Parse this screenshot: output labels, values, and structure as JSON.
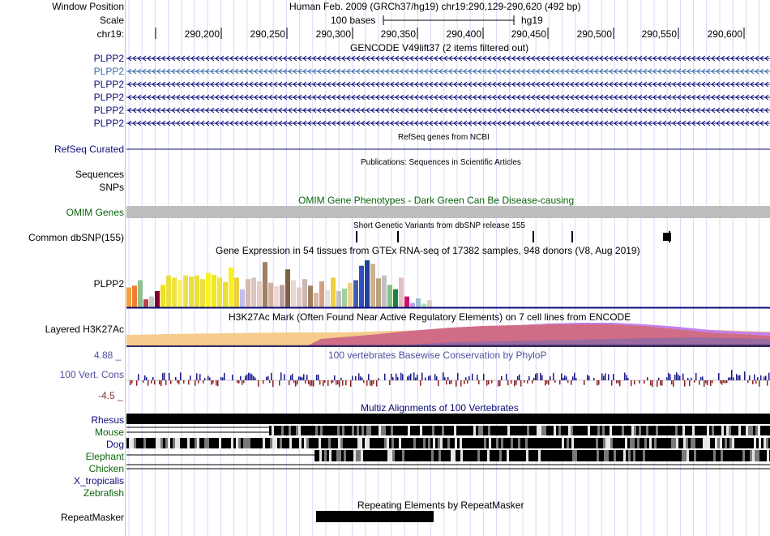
{
  "header": {
    "window_position_label": "Window Position",
    "assembly_text": "Human Feb. 2009 (GRCh37/hg19)   chr19:290,129-290,620 (492 bp)",
    "scale_label": "Scale",
    "scale_bar_text": "100 bases",
    "scale_db": "hg19",
    "chrom_label": "chr19:",
    "ticks": [
      "290,200",
      "290,250",
      "290,300",
      "290,350",
      "290,400",
      "290,450",
      "290,500",
      "290,550",
      "290,600"
    ]
  },
  "tracks": {
    "gencode": {
      "title": "GENCODE V49lift37 (2 items filtered out)",
      "items": [
        "PLPP2",
        "PLPP2",
        "PLPP2",
        "PLPP2",
        "PLPP2",
        "PLPP2"
      ],
      "highlight_color": "#3a6aa8",
      "color": "#0c0c78"
    },
    "refseq": {
      "title": "RefSeq genes from NCBI",
      "label": "RefSeq Curated"
    },
    "publications": {
      "title": "Publications: Sequences in Scientific Articles",
      "label": "Sequences"
    },
    "snps": {
      "label": "SNPs"
    },
    "omim": {
      "title": "OMIM Gene Phenotypes - Dark Green Can Be Disease-causing",
      "label": "OMIM Genes",
      "color": "#0a640a"
    },
    "dbsnp": {
      "title": "Short Genetic Variants from dbSNP release 155",
      "label": "Common dbSNP(155)"
    },
    "gtex": {
      "title": "Gene Expression in 54 tissues from GTEx RNA-seq of 17382 samples, 948 donors (V8, Aug 2019)",
      "label": "PLPP2",
      "values": [
        0.55,
        0.6,
        0.75,
        0.22,
        0.3,
        0.45,
        0.62,
        0.88,
        0.82,
        0.75,
        0.88,
        0.85,
        0.88,
        0.78,
        0.95,
        0.9,
        0.82,
        0.7,
        1.1,
        0.82,
        0.5,
        0.78,
        0.82,
        0.72,
        1.25,
        0.68,
        0.58,
        0.62,
        1.05,
        0.75,
        0.55,
        0.78,
        0.6,
        0.4,
        0.72,
        0.48,
        0.82,
        0.45,
        0.52,
        0.68,
        0.75,
        1.15,
        1.3,
        1.2,
        0.8,
        0.88,
        0.62,
        0.5,
        0.82,
        0.3,
        0.12,
        0.25,
        0.1,
        0.2
      ],
      "colors": [
        "#f0a040",
        "#f08030",
        "#90c090",
        "#c04050",
        "#c0d0c0",
        "#800030",
        "#f0e020",
        "#e8e040",
        "#f0e040",
        "#f8f060",
        "#f0e050",
        "#e8e040",
        "#f0e030",
        "#ece040",
        "#f8f030",
        "#f0e820",
        "#f0e040",
        "#e8e030",
        "#f8f020",
        "#ecd040",
        "#c0c0f0",
        "#d8b8b0",
        "#d8c8c0",
        "#e8c8c0",
        "#a08060",
        "#d0b0a0",
        "#e8d8d8",
        "#c0a0a0",
        "#806040",
        "#e8d8d0",
        "#e0c8c8",
        "#c8b8b0",
        "#a08060",
        "#d8b8a8",
        "#d0a080",
        "#e0e0e0",
        "#f0d040",
        "#c0c0c0",
        "#a0d0a0",
        "#f0d090",
        "#4060b0",
        "#3050c0",
        "#2040a0",
        "#d0b090",
        "#b8a080",
        "#c0c0c0",
        "#80c080",
        "#208040",
        "#e0c0c0",
        "#d01070",
        "#c0a0e0",
        "#a0c0d0",
        "#b0e0b0",
        "#e0d0c0"
      ]
    },
    "h3k27ac": {
      "title": "H3K27Ac Mark (Often Found Near Active Regulatory Elements) on 7 cell lines from ENCODE",
      "label": "Layered H3K27Ac"
    },
    "conservation": {
      "title": "100 vertebrates Basewise Conservation by PhyloP",
      "label": "100 Vert. Cons",
      "max_label": "4.88 _",
      "min_label": "-4.5 _"
    },
    "multiz": {
      "title": "Multiz Alignments of 100 Vertebrates",
      "species": [
        {
          "name": "Rhesus",
          "color": "#0c0c78"
        },
        {
          "name": "Mouse",
          "color": "#0a640a"
        },
        {
          "name": "Dog",
          "color": "#0c0c78"
        },
        {
          "name": "Elephant",
          "color": "#0a640a"
        },
        {
          "name": "Chicken",
          "color": "#0a640a"
        },
        {
          "name": "X_tropicalis",
          "color": "#0c0c78"
        },
        {
          "name": "Zebrafish",
          "color": "#0a640a"
        }
      ]
    },
    "repeatmasker": {
      "title": "Repeating Elements by RepeatMasker",
      "label": "RepeatMasker"
    }
  }
}
